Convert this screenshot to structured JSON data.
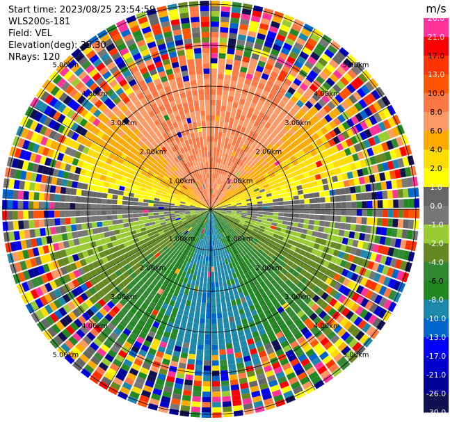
{
  "header": {
    "start_time": "Start time: 2023/08/25 23:54:59",
    "instrument": "WLS200s-181",
    "field": "Field: VEL",
    "elevation": "Elevation(deg): 35.30",
    "nrays": "NRays: 120"
  },
  "chart_data": {
    "type": "heatmap",
    "subtype": "radar-ppi",
    "field": "VEL",
    "units": "m/s",
    "n_rays": 120,
    "range_rings_km": [
      1,
      2,
      3,
      4,
      5
    ],
    "ring_labels": [
      "1.00km",
      "2.00km",
      "3.00km",
      "4.00km",
      "5.00km"
    ],
    "colorbar": {
      "label": "m/s",
      "ticks": [
        "26.0",
        "21.0",
        "17.0",
        "13.0",
        "10.0",
        "8.0",
        "6.0",
        "4.0",
        "2.0",
        "1.0",
        "0.0",
        "-1.0",
        "-2.0",
        "-4.0",
        "-6.0",
        "-8.0",
        "-10.0",
        "-13.0",
        "-17.0",
        "-21.0",
        "-26.0",
        "-30.0"
      ],
      "colors": [
        "#ff3399",
        "#ff0000",
        "#ff3300",
        "#ff5500",
        "#ff7744",
        "#ff9966",
        "#ffaa00",
        "#ffdd00",
        "#ffff00",
        "#666666",
        "#777777",
        "#99cc33",
        "#668822",
        "#338833",
        "#228822",
        "#1e88aa",
        "#0066cc",
        "#0000ff",
        "#0000cc",
        "#000099",
        "#101050"
      ]
    },
    "sector_velocity_mps": [
      {
        "azimuth_deg": 0,
        "velocity": 8.0
      },
      {
        "azimuth_deg": 30,
        "velocity": 8.0
      },
      {
        "azimuth_deg": 60,
        "velocity": 4.0
      },
      {
        "azimuth_deg": 80,
        "velocity": 1.0
      },
      {
        "azimuth_deg": 100,
        "velocity": -1.0
      },
      {
        "azimuth_deg": 130,
        "velocity": -4.0
      },
      {
        "azimuth_deg": 160,
        "velocity": -8.0
      },
      {
        "azimuth_deg": 180,
        "velocity": -10.0
      },
      {
        "azimuth_deg": 200,
        "velocity": -8.0
      },
      {
        "azimuth_deg": 230,
        "velocity": -4.0
      },
      {
        "azimuth_deg": 260,
        "velocity": -1.0
      },
      {
        "azimuth_deg": 280,
        "velocity": 1.0
      },
      {
        "azimuth_deg": 300,
        "velocity": 4.0
      },
      {
        "azimuth_deg": 330,
        "velocity": 8.0
      }
    ]
  }
}
